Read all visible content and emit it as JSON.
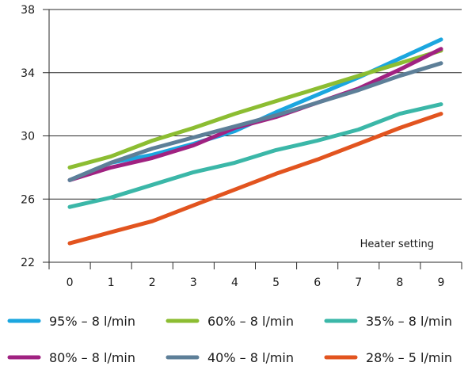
{
  "chart_data": {
    "type": "line",
    "title": "",
    "xlabel": "Heater setting",
    "ylabel": "",
    "x": [
      0,
      1,
      2,
      3,
      4,
      5,
      6,
      7,
      8,
      9
    ],
    "xlim": [
      -0.5,
      9.5
    ],
    "ylim": [
      22,
      38
    ],
    "yticks": [
      22,
      26,
      30,
      34,
      38
    ],
    "grid": "horizontal",
    "legend_position": "bottom",
    "series": [
      {
        "name": "95% – 8 l/min",
        "color": "#1ba6df",
        "values": [
          27.2,
          28.3,
          28.8,
          29.5,
          30.3,
          31.5,
          32.6,
          33.7,
          34.9,
          36.1
        ]
      },
      {
        "name": "60% – 8 l/min",
        "color": "#8cbd32",
        "values": [
          28.0,
          28.7,
          29.7,
          30.5,
          31.4,
          32.2,
          33.0,
          33.8,
          34.6,
          35.4
        ]
      },
      {
        "name": "35% – 8 l/min",
        "color": "#3bb7a8",
        "values": [
          25.5,
          26.1,
          26.9,
          27.7,
          28.3,
          29.1,
          29.7,
          30.4,
          31.4,
          32.0
        ]
      },
      {
        "name": "80% – 8 l/min",
        "color": "#a02281",
        "values": [
          27.2,
          28.0,
          28.6,
          29.4,
          30.5,
          31.2,
          32.1,
          33.0,
          34.2,
          35.5
        ]
      },
      {
        "name": "40% – 8 l/min",
        "color": "#5d7f98",
        "values": [
          27.2,
          28.3,
          29.2,
          29.9,
          30.6,
          31.3,
          32.1,
          32.9,
          33.8,
          34.6
        ]
      },
      {
        "name": "28% – 5 l/min",
        "color": "#e2541f",
        "values": [
          23.2,
          23.9,
          24.6,
          25.6,
          26.6,
          27.6,
          28.5,
          29.5,
          30.5,
          31.4
        ]
      }
    ]
  }
}
